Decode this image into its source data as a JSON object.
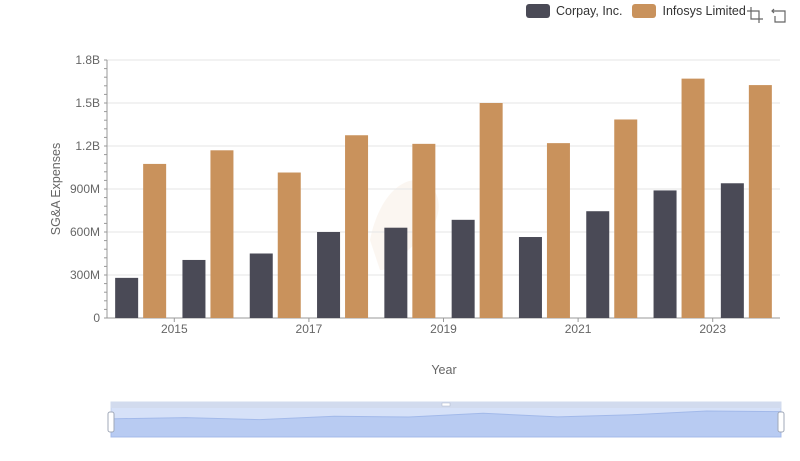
{
  "legend": {
    "items": [
      {
        "label": "Corpay, Inc.",
        "color": "#4a4a56"
      },
      {
        "label": "Infosys Limited",
        "color": "#c9925c"
      }
    ]
  },
  "toolbar": {
    "icons": [
      "zoom-select-icon",
      "zoom-reset-icon"
    ]
  },
  "chart_data": {
    "type": "bar",
    "categories": [
      "2014",
      "2015",
      "2016",
      "2017",
      "2018",
      "2019",
      "2020",
      "2021",
      "2022",
      "2023"
    ],
    "series": [
      {
        "name": "Corpay, Inc.",
        "color": "#4a4a56",
        "values": [
          280000000,
          405000000,
          450000000,
          600000000,
          630000000,
          685000000,
          565000000,
          745000000,
          890000000,
          940000000
        ]
      },
      {
        "name": "Infosys Limited",
        "color": "#c9925c",
        "values": [
          1075000000,
          1170000000,
          1015000000,
          1275000000,
          1215000000,
          1500000000,
          1220000000,
          1385000000,
          1670000000,
          1625000000
        ]
      }
    ],
    "xlabel": "Year",
    "ylabel": "SG&A Expenses",
    "ylim": [
      0,
      1800000000
    ],
    "yticks": [
      {
        "value": 0,
        "label": "0"
      },
      {
        "value": 300000000,
        "label": "300M"
      },
      {
        "value": 600000000,
        "label": "600M"
      },
      {
        "value": 900000000,
        "label": "900M"
      },
      {
        "value": 1200000000,
        "label": "1.2B"
      },
      {
        "value": 1500000000,
        "label": "1.5B"
      },
      {
        "value": 1800000000,
        "label": "1.8B"
      }
    ],
    "xticks": [
      "2015",
      "2017",
      "2019",
      "2021",
      "2023"
    ],
    "grid": true,
    "legend_position": "top-right",
    "data_zoom": true
  }
}
